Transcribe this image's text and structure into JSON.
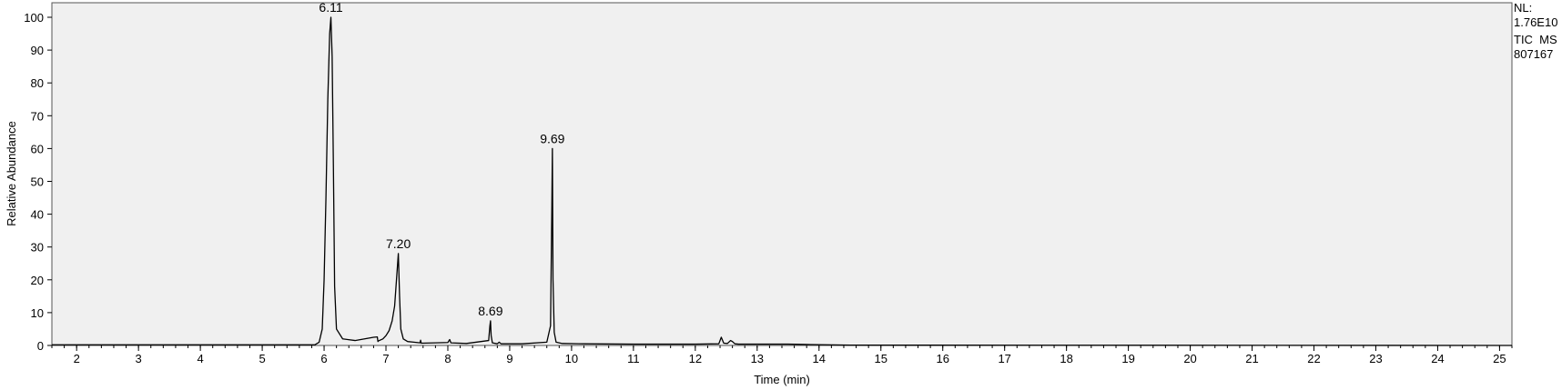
{
  "chart_data": {
    "type": "line",
    "title": "",
    "xlabel": "Time (min)",
    "ylabel": "Relative Abundance",
    "xlim": [
      1.6,
      25.2
    ],
    "ylim": [
      0,
      100
    ],
    "x_ticks": [
      2,
      3,
      4,
      5,
      6,
      7,
      8,
      9,
      10,
      11,
      12,
      13,
      14,
      15,
      16,
      17,
      18,
      19,
      20,
      21,
      22,
      23,
      24,
      25
    ],
    "y_ticks": [
      0,
      10,
      20,
      30,
      40,
      50,
      60,
      70,
      80,
      90,
      100
    ],
    "grid": false,
    "background_color": "#f0f0f0",
    "line_color": "#000000",
    "peak_labels": [
      {
        "x": 6.11,
        "y": 100,
        "text": "6.11"
      },
      {
        "x": 7.2,
        "y": 28,
        "text": "7.20"
      },
      {
        "x": 8.69,
        "y": 7.5,
        "text": "8.69"
      },
      {
        "x": 9.69,
        "y": 60,
        "text": "9.69"
      }
    ],
    "series": [
      {
        "x": [
          1.6,
          5.85,
          5.92,
          5.97,
          6.0,
          6.03,
          6.06,
          6.09,
          6.11,
          6.13,
          6.15,
          6.17,
          6.2,
          6.3,
          6.5,
          6.8,
          6.86,
          6.87,
          6.88,
          6.95,
          7.0,
          7.05,
          7.1,
          7.14,
          7.17,
          7.2,
          7.22,
          7.24,
          7.28,
          7.35,
          7.45,
          7.55,
          7.56,
          7.57,
          7.8,
          8.0,
          8.03,
          8.05,
          8.3,
          8.66,
          8.68,
          8.69,
          8.7,
          8.72,
          8.8,
          8.83,
          8.86,
          9.2,
          9.6,
          9.66,
          9.68,
          9.69,
          9.7,
          9.72,
          9.75,
          9.85,
          10.2,
          11.0,
          12.0,
          12.38,
          12.42,
          12.46,
          12.52,
          12.57,
          12.6,
          12.64,
          12.7,
          13.0,
          13.5,
          13.8,
          14.1,
          14.5,
          25.2
        ],
        "y": [
          0.2,
          0.2,
          1.0,
          5.0,
          20.0,
          45.0,
          75.0,
          95.0,
          100.0,
          88.0,
          55.0,
          18.0,
          5.0,
          2.0,
          1.5,
          2.5,
          2.6,
          1.2,
          1.4,
          2.0,
          3.0,
          4.5,
          7.5,
          12.0,
          20.0,
          28.0,
          15.0,
          5.0,
          2.0,
          1.2,
          1.0,
          0.8,
          1.6,
          0.7,
          0.8,
          0.9,
          1.8,
          0.8,
          0.6,
          1.5,
          6.0,
          7.5,
          3.0,
          0.8,
          0.5,
          1.0,
          0.5,
          0.5,
          1.0,
          6.0,
          40.0,
          60.0,
          20.0,
          4.0,
          1.0,
          0.6,
          0.5,
          0.4,
          0.4,
          0.5,
          2.5,
          0.7,
          0.6,
          1.5,
          1.2,
          0.5,
          0.4,
          0.4,
          0.4,
          0.3,
          0.2,
          0.1,
          0.0
        ]
      }
    ]
  },
  "info": {
    "line1": "NL:",
    "line2": "1.76E10",
    "line3": "TIC  MS",
    "line4": "807167"
  }
}
